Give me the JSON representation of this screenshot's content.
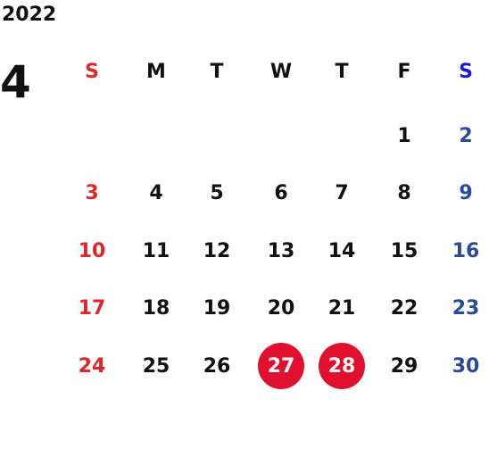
{
  "year": "2022",
  "month": "4",
  "weekdays": [
    "S",
    "M",
    "T",
    "W",
    "T",
    "F",
    "S"
  ],
  "weeks": [
    [
      null,
      null,
      null,
      null,
      null,
      "1",
      "2"
    ],
    [
      "3",
      "4",
      "5",
      "6",
      "7",
      "8",
      "9"
    ],
    [
      "10",
      "11",
      "12",
      "13",
      "14",
      "15",
      "16"
    ],
    [
      "17",
      "18",
      "19",
      "20",
      "21",
      "22",
      "23"
    ],
    [
      "24",
      "25",
      "26",
      {
        "label": "27",
        "highlight": true
      },
      {
        "label": "28",
        "highlight": true
      },
      "29",
      "30"
    ]
  ]
}
